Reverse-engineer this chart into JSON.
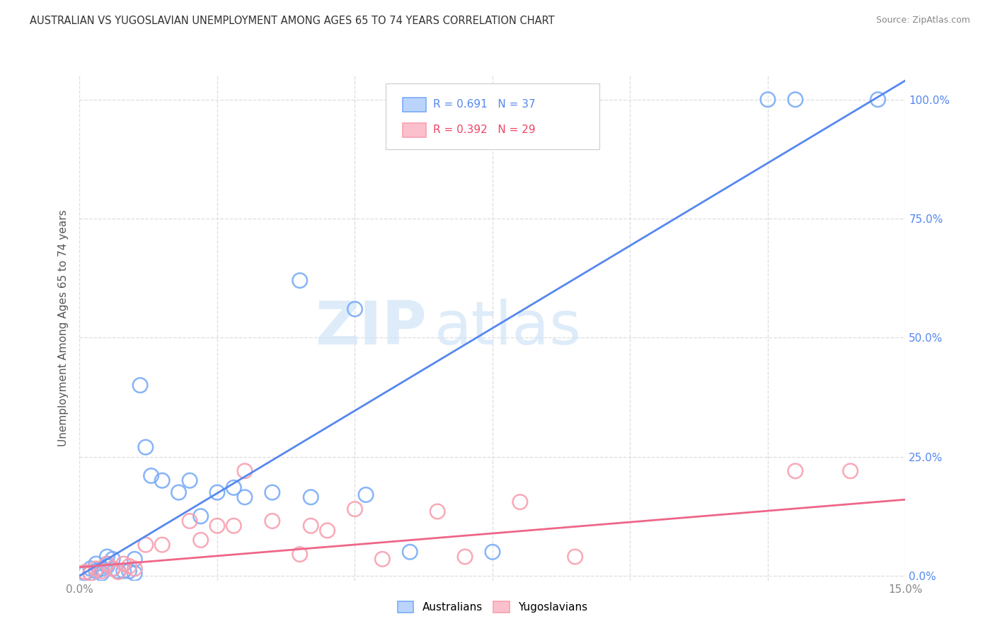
{
  "title": "AUSTRALIAN VS YUGOSLAVIAN UNEMPLOYMENT AMONG AGES 65 TO 74 YEARS CORRELATION CHART",
  "source": "Source: ZipAtlas.com",
  "ylabel": "Unemployment Among Ages 65 to 74 years",
  "yticks_right": [
    "0.0%",
    "25.0%",
    "50.0%",
    "75.0%",
    "100.0%"
  ],
  "yticks_right_vals": [
    0.0,
    0.25,
    0.5,
    0.75,
    1.0
  ],
  "xlim": [
    0.0,
    0.15
  ],
  "ylim": [
    -0.01,
    1.05
  ],
  "legend_r_aus": "R = 0.691",
  "legend_n_aus": "N = 37",
  "legend_r_yug": "R = 0.392",
  "legend_n_yug": "N = 29",
  "aus_color": "#7aacf8",
  "yug_color": "#f8a0b0",
  "line_aus_color": "#5588ee",
  "line_yug_color": "#ee6688",
  "watermark_zip": "ZIP",
  "watermark_atlas": "atlas",
  "aus_points_x": [
    0.001,
    0.002,
    0.002,
    0.003,
    0.003,
    0.004,
    0.004,
    0.005,
    0.005,
    0.005,
    0.006,
    0.006,
    0.007,
    0.008,
    0.009,
    0.01,
    0.01,
    0.011,
    0.012,
    0.013,
    0.015,
    0.018,
    0.02,
    0.022,
    0.025,
    0.028,
    0.03,
    0.035,
    0.04,
    0.042,
    0.05,
    0.052,
    0.06,
    0.075,
    0.125,
    0.13,
    0.145
  ],
  "aus_points_y": [
    0.005,
    0.005,
    0.015,
    0.01,
    0.025,
    0.015,
    0.005,
    0.04,
    0.025,
    0.02,
    0.035,
    0.015,
    0.01,
    0.01,
    0.01,
    0.035,
    0.005,
    0.4,
    0.27,
    0.21,
    0.2,
    0.175,
    0.2,
    0.125,
    0.175,
    0.185,
    0.165,
    0.175,
    0.62,
    0.165,
    0.56,
    0.17,
    0.05,
    0.05,
    1.0,
    1.0,
    1.0
  ],
  "yug_points_x": [
    0.001,
    0.002,
    0.003,
    0.004,
    0.005,
    0.006,
    0.007,
    0.008,
    0.009,
    0.01,
    0.012,
    0.015,
    0.02,
    0.022,
    0.025,
    0.028,
    0.03,
    0.035,
    0.04,
    0.042,
    0.045,
    0.05,
    0.055,
    0.065,
    0.07,
    0.08,
    0.09,
    0.13,
    0.14
  ],
  "yug_points_y": [
    0.008,
    0.005,
    0.015,
    0.01,
    0.025,
    0.015,
    0.008,
    0.025,
    0.02,
    0.015,
    0.065,
    0.065,
    0.115,
    0.075,
    0.105,
    0.105,
    0.22,
    0.115,
    0.045,
    0.105,
    0.095,
    0.14,
    0.035,
    0.135,
    0.04,
    0.155,
    0.04,
    0.22,
    0.22
  ],
  "aus_line_x": [
    0.0,
    0.15
  ],
  "aus_line_y": [
    0.0,
    1.04
  ],
  "yug_line_x": [
    0.0,
    0.15
  ],
  "yug_line_y": [
    0.018,
    0.16
  ],
  "background_color": "#ffffff",
  "grid_color": "#dddddd"
}
